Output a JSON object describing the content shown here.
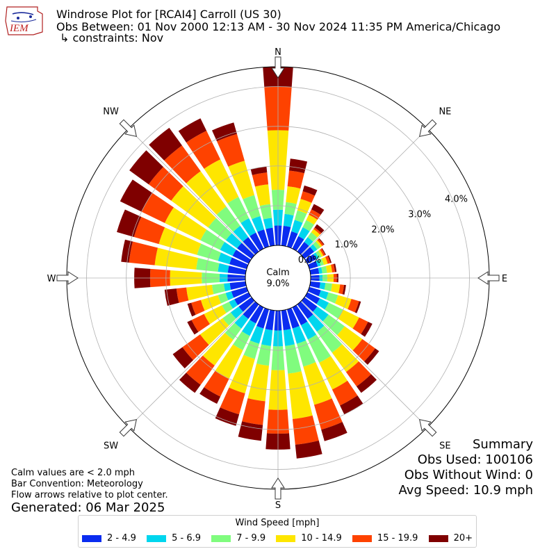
{
  "header": {
    "line1": "Windrose Plot for [RCAI4] Carroll (US 30)",
    "line2": "Obs Between: 01 Nov 2000 12:13 AM - 30 Nov 2024 11:35 PM America/Chicago",
    "line3": "↳ constraints: Nov"
  },
  "logo": {
    "text": "IEM"
  },
  "notes": {
    "calm": "Calm values are < 2.0 mph",
    "convention": "Bar Convention: Meteorology",
    "flow": "Flow arrows relative to plot center.",
    "generated": "Generated: 06 Mar 2025"
  },
  "summary": {
    "title": "Summary",
    "obs_used": "Obs Used: 100106",
    "obs_without_wind": "Obs Without Wind: 0",
    "avg_speed": "Avg Speed: 10.9 mph"
  },
  "legend": {
    "title": "Wind Speed [mph]",
    "items": [
      {
        "label": "2 - 4.9",
        "color": "#0a2cf0"
      },
      {
        "label": "5 - 6.9",
        "color": "#00d6ee"
      },
      {
        "label": "7 - 9.9",
        "color": "#80fc7e"
      },
      {
        "label": "10 - 14.9",
        "color": "#fee600"
      },
      {
        "label": "15 - 19.9",
        "color": "#fe4200"
      },
      {
        "label": "20+",
        "color": "#7f0000"
      }
    ]
  },
  "chart_data": {
    "type": "windrose",
    "calm_label": "Calm",
    "calm_percent": "9.0%",
    "radial_ticks": [
      0,
      1,
      2,
      3,
      4
    ],
    "radial_tick_labels": [
      "0.0%",
      "1.0%",
      "2.0%",
      "3.0%",
      "4.0%"
    ],
    "r_max": 4.5,
    "compass_labels": [
      "N",
      "NE",
      "E",
      "SE",
      "S",
      "SW",
      "W",
      "NW"
    ],
    "series_names": [
      "2 - 4.9",
      "5 - 6.9",
      "7 - 9.9",
      "10 - 14.9",
      "15 - 19.9",
      "20+"
    ],
    "directions_deg": [
      0,
      10,
      20,
      30,
      40,
      50,
      60,
      70,
      80,
      90,
      100,
      110,
      120,
      130,
      140,
      150,
      160,
      170,
      180,
      190,
      200,
      210,
      220,
      230,
      240,
      250,
      260,
      270,
      280,
      290,
      300,
      310,
      320,
      330,
      340,
      350
    ],
    "cumulative_percent": [
      [
        0.5,
        0.9,
        1.4,
        2.9,
        4.0,
        4.5
      ],
      [
        0.5,
        0.8,
        1.1,
        1.5,
        1.9,
        2.2
      ],
      [
        0.4,
        0.7,
        0.95,
        1.25,
        1.45,
        1.6
      ],
      [
        0.35,
        0.6,
        0.8,
        0.95,
        1.1,
        1.25
      ],
      [
        0.3,
        0.45,
        0.6,
        0.7,
        0.75,
        0.85
      ],
      [
        0.3,
        0.4,
        0.5,
        0.55,
        0.6,
        0.62
      ],
      [
        0.25,
        0.32,
        0.4,
        0.45,
        0.5,
        0.52
      ],
      [
        0.22,
        0.3,
        0.38,
        0.48,
        0.55,
        0.58
      ],
      [
        0.22,
        0.3,
        0.42,
        0.55,
        0.62,
        0.66
      ],
      [
        0.22,
        0.3,
        0.42,
        0.58,
        0.66,
        0.7
      ],
      [
        0.25,
        0.38,
        0.55,
        0.75,
        0.85,
        0.9
      ],
      [
        0.3,
        0.5,
        0.75,
        1.1,
        1.3,
        1.35
      ],
      [
        0.35,
        0.6,
        1.0,
        1.45,
        1.7,
        1.82
      ],
      [
        0.4,
        0.75,
        1.25,
        1.8,
        2.2,
        2.32
      ],
      [
        0.45,
        0.85,
        1.5,
        2.1,
        2.55,
        2.75
      ],
      [
        0.5,
        0.9,
        1.55,
        2.3,
        2.75,
        3.0
      ],
      [
        0.5,
        0.9,
        1.5,
        2.5,
        3.15,
        3.45
      ],
      [
        0.5,
        0.9,
        1.6,
        2.75,
        3.4,
        3.75
      ],
      [
        0.5,
        0.9,
        1.5,
        2.5,
        3.1,
        3.5
      ],
      [
        0.5,
        0.9,
        1.4,
        2.3,
        2.9,
        3.3
      ],
      [
        0.5,
        0.9,
        1.3,
        2.2,
        2.75,
        3.05
      ],
      [
        0.45,
        0.8,
        1.2,
        2.0,
        2.5,
        2.7
      ],
      [
        0.45,
        0.75,
        1.1,
        1.9,
        2.5,
        2.75
      ],
      [
        0.4,
        0.65,
        0.9,
        1.6,
        2.15,
        2.45
      ],
      [
        0.4,
        0.55,
        0.75,
        1.25,
        1.6,
        1.72
      ],
      [
        0.4,
        0.55,
        0.75,
        1.2,
        1.45,
        1.55
      ],
      [
        0.4,
        0.55,
        0.85,
        1.5,
        1.75,
        2.05
      ],
      [
        0.45,
        0.65,
        1.1,
        1.9,
        2.4,
        2.8
      ],
      [
        0.45,
        0.7,
        1.25,
        2.3,
        2.95,
        3.15
      ],
      [
        0.45,
        0.75,
        1.3,
        2.3,
        2.95,
        3.4
      ],
      [
        0.45,
        0.8,
        1.35,
        2.35,
        3.0,
        3.6
      ],
      [
        0.45,
        0.8,
        1.35,
        2.5,
        3.2,
        3.8
      ],
      [
        0.45,
        0.8,
        1.4,
        2.5,
        3.3,
        3.85
      ],
      [
        0.45,
        0.85,
        1.45,
        2.5,
        3.3,
        3.65
      ],
      [
        0.45,
        0.8,
        1.35,
        2.25,
        2.95,
        3.25
      ],
      [
        0.45,
        0.7,
        1.05,
        1.55,
        1.85,
        2.0
      ]
    ]
  }
}
